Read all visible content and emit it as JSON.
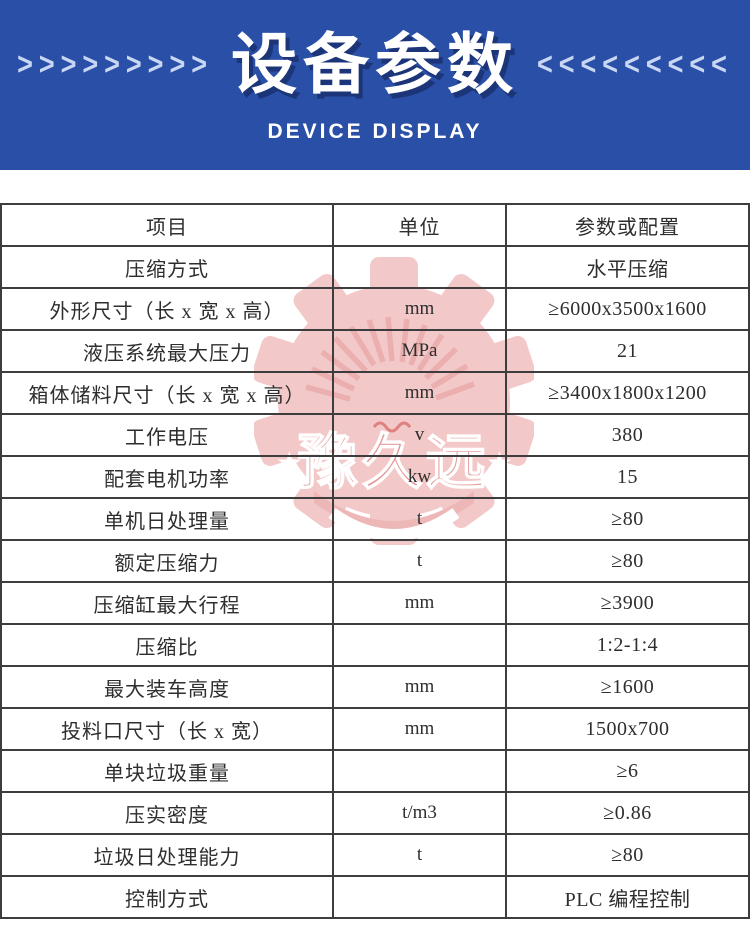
{
  "banner": {
    "left_arrows": ">>>>>>>>>",
    "title": "设备参数",
    "right_arrows": "<<<<<<<<<",
    "subtitle": "DEVICE DISPLAY",
    "bg_color": "#2a4fa6"
  },
  "watermark": {
    "left_star": "★",
    "text": "豫久远",
    "right_star": "★",
    "ink_color": "#f2bfbf",
    "text_color": "#df8585"
  },
  "table": {
    "headers": [
      "项目",
      "单位",
      "参数或配置"
    ],
    "rows": [
      {
        "item": "压缩方式",
        "unit": "",
        "value": "水平压缩"
      },
      {
        "item": "外形尺寸（长 x 宽 x 高）",
        "unit": "mm",
        "value": "≥6000x3500x1600"
      },
      {
        "item": "液压系统最大压力",
        "unit": "MPa",
        "value": "21"
      },
      {
        "item": "箱体储料尺寸（长 x 宽 x 高）",
        "unit": "mm",
        "value": "≥3400x1800x1200"
      },
      {
        "item": "工作电压",
        "unit": "v",
        "value": "380"
      },
      {
        "item": "配套电机功率",
        "unit": "kw",
        "value": "15"
      },
      {
        "item": "单机日处理量",
        "unit": "t",
        "value": "≥80"
      },
      {
        "item": "额定压缩力",
        "unit": "t",
        "value": "≥80"
      },
      {
        "item": "压缩缸最大行程",
        "unit": "mm",
        "value": "≥3900"
      },
      {
        "item": "压缩比",
        "unit": "",
        "value": "1:2-1:4"
      },
      {
        "item": "最大装车高度",
        "unit": "mm",
        "value": "≥1600"
      },
      {
        "item": "投料口尺寸（长 x 宽）",
        "unit": "mm",
        "value": "1500x700"
      },
      {
        "item": "单块垃圾重量",
        "unit": "",
        "value": "≥6"
      },
      {
        "item": "压实密度",
        "unit": "t/m3",
        "value": "≥0.86"
      },
      {
        "item": "垃圾日处理能力",
        "unit": "t",
        "value": "≥80"
      },
      {
        "item": "控制方式",
        "unit": "",
        "value": "PLC 编程控制"
      }
    ]
  }
}
